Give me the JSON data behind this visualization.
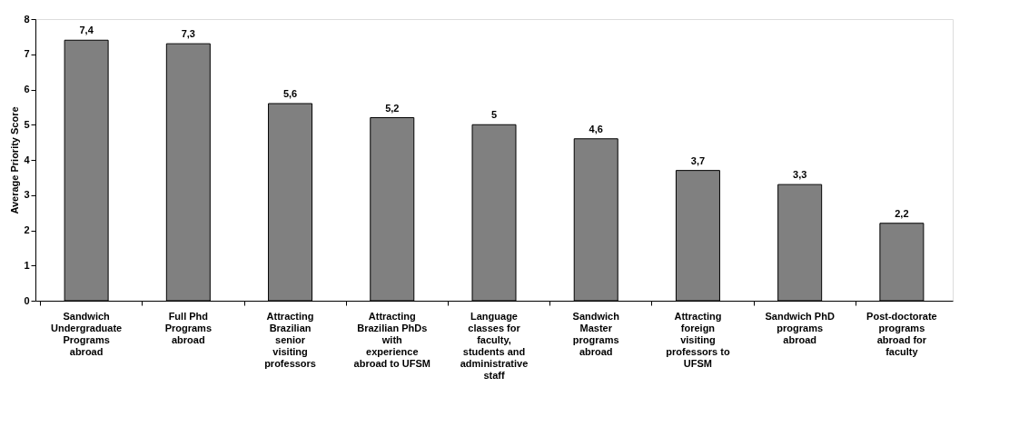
{
  "chart_data": {
    "type": "bar",
    "ylabel": "Average Priority Score",
    "categories": [
      "Sandwich Undergraduate Programs abroad",
      "Full Phd Programs abroad",
      "Attracting Brazilian senior visiting professors",
      "Attracting Brazilian PhDs with experience abroad to UFSM",
      "Language classes for faculty, students and administrative staff",
      "Sandwich Master programs abroad",
      "Attracting foreign visiting professors to UFSM",
      "Sandwich PhD programs abroad",
      "Post-doctorate programs abroad for faculty"
    ],
    "values": [
      7.4,
      7.3,
      5.6,
      5.2,
      5,
      4.6,
      3.7,
      3.3,
      2.2
    ],
    "value_labels": [
      "7,4",
      "7,3",
      "5,6",
      "5,2",
      "5",
      "4,6",
      "3,7",
      "3,3",
      "2,2"
    ],
    "color": "#808080",
    "ylim": [
      0,
      8
    ],
    "yticks": [
      0,
      1,
      2,
      3,
      4,
      5,
      6,
      7,
      8
    ],
    "grid": false
  }
}
